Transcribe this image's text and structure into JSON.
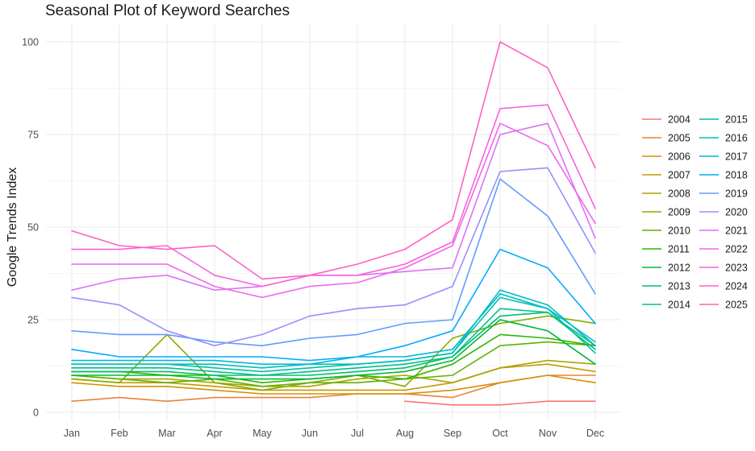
{
  "chart_data": {
    "type": "line",
    "title": "Seasonal Plot of Keyword Searches",
    "xlabel": "",
    "ylabel": "Google Trends Index",
    "categories": [
      "Jan",
      "Feb",
      "Mar",
      "Apr",
      "May",
      "Jun",
      "Jul",
      "Aug",
      "Sep",
      "Oct",
      "Nov",
      "Dec"
    ],
    "ylim": [
      -2,
      104
    ],
    "yticks": [
      0,
      25,
      50,
      75,
      100
    ],
    "grid": true,
    "legend_position": "right",
    "series": [
      {
        "name": "2004",
        "color": "#F8766D",
        "values": [
          null,
          null,
          null,
          null,
          null,
          null,
          null,
          3,
          2,
          2,
          3,
          3
        ]
      },
      {
        "name": "2005",
        "color": "#E8833A",
        "values": [
          3,
          4,
          3,
          4,
          4,
          4,
          5,
          5,
          4,
          8,
          10,
          10
        ]
      },
      {
        "name": "2006",
        "color": "#D39200",
        "values": [
          8,
          7,
          7,
          6,
          5,
          5,
          5,
          5,
          6,
          8,
          10,
          8
        ]
      },
      {
        "name": "2007",
        "color": "#C39A00",
        "values": [
          9,
          8,
          8,
          7,
          6,
          6,
          6,
          6,
          8,
          12,
          13,
          11
        ]
      },
      {
        "name": "2008",
        "color": "#A9A400",
        "values": [
          10,
          9,
          9,
          8,
          7,
          7,
          9,
          10,
          8,
          12,
          14,
          13
        ]
      },
      {
        "name": "2009",
        "color": "#8AAB00",
        "values": [
          9,
          8,
          21,
          8,
          6,
          8,
          10,
          7,
          20,
          24,
          26,
          24
        ]
      },
      {
        "name": "2010",
        "color": "#5BB300",
        "values": [
          10,
          9,
          8,
          9,
          7,
          8,
          8,
          9,
          10,
          18,
          19,
          18
        ]
      },
      {
        "name": "2011",
        "color": "#2FB600",
        "values": [
          11,
          11,
          10,
          10,
          8,
          9,
          10,
          9,
          13,
          21,
          20,
          18
        ]
      },
      {
        "name": "2012",
        "color": "#00BA38",
        "values": [
          10,
          10,
          10,
          9,
          9,
          9,
          10,
          11,
          14,
          25,
          22,
          13
        ]
      },
      {
        "name": "2013",
        "color": "#00BD6F",
        "values": [
          11,
          11,
          11,
          10,
          10,
          10,
          11,
          12,
          15,
          26,
          27,
          17
        ]
      },
      {
        "name": "2014",
        "color": "#00C08B",
        "values": [
          12,
          12,
          12,
          11,
          10,
          11,
          12,
          13,
          15,
          28,
          27,
          18
        ]
      },
      {
        "name": "2015",
        "color": "#00C1A3",
        "values": [
          13,
          13,
          13,
          12,
          11,
          12,
          13,
          14,
          16,
          31,
          28,
          16
        ]
      },
      {
        "name": "2016",
        "color": "#00BFBA",
        "values": [
          13,
          13,
          13,
          13,
          12,
          13,
          13,
          14,
          16,
          33,
          29,
          18
        ]
      },
      {
        "name": "2017",
        "color": "#00B9D4",
        "values": [
          14,
          14,
          14,
          14,
          13,
          13,
          15,
          15,
          17,
          32,
          28,
          19
        ]
      },
      {
        "name": "2018",
        "color": "#00ABFD",
        "values": [
          17,
          15,
          15,
          15,
          15,
          14,
          15,
          18,
          22,
          44,
          39,
          24
        ]
      },
      {
        "name": "2019",
        "color": "#619CFF",
        "values": [
          22,
          21,
          21,
          19,
          18,
          20,
          21,
          24,
          25,
          63,
          53,
          32
        ]
      },
      {
        "name": "2020",
        "color": "#9590FF",
        "values": [
          31,
          29,
          22,
          18,
          21,
          26,
          28,
          29,
          34,
          65,
          66,
          43
        ]
      },
      {
        "name": "2021",
        "color": "#DB72FB",
        "values": [
          33,
          36,
          37,
          33,
          34,
          37,
          37,
          38,
          39,
          75,
          78,
          47
        ]
      },
      {
        "name": "2022",
        "color": "#F066EA",
        "values": [
          40,
          40,
          40,
          34,
          31,
          34,
          35,
          39,
          45,
          78,
          72,
          51
        ]
      },
      {
        "name": "2023",
        "color": "#FA62DB",
        "values": [
          44,
          44,
          45,
          37,
          34,
          37,
          37,
          40,
          46,
          82,
          83,
          55
        ]
      },
      {
        "name": "2024",
        "color": "#FF61C3",
        "values": [
          49,
          45,
          44,
          45,
          36,
          37,
          40,
          44,
          52,
          100,
          93,
          66
        ]
      },
      {
        "name": "2025",
        "color": "#FF67A4",
        "values": [
          null,
          null,
          null,
          null,
          null,
          null,
          null,
          null,
          null,
          null,
          null,
          null
        ]
      }
    ]
  }
}
